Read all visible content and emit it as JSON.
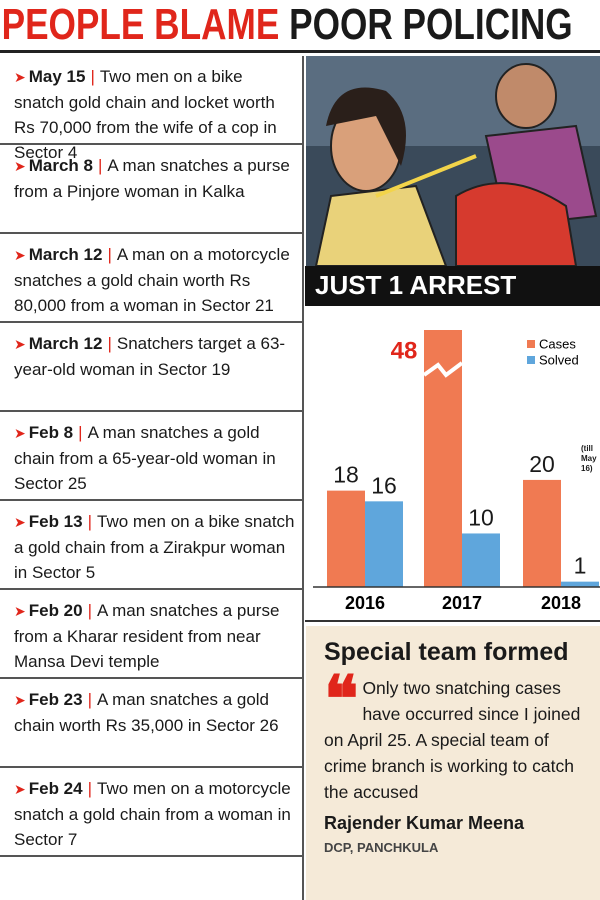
{
  "header": {
    "title_red": "PEOPLE BLAME",
    "title_black": "POOR POLICING"
  },
  "incidents": [
    {
      "date": "May 15",
      "text": "Two men on a bike snatch gold chain and locket worth Rs 70,000 from the wife of a cop in Sector 4"
    },
    {
      "date": "March 8",
      "text": "A man snatches a purse from a Pinjore woman in Kalka"
    },
    {
      "date": "March 12",
      "text": "A man on a motorcycle snatches a gold chain worth Rs 80,000 from a woman in Sector 21"
    },
    {
      "date": "March 12",
      "text": "Snatchers target a 63-year-old woman in Sector 19"
    },
    {
      "date": "Feb 8",
      "text": "A man snatches a gold chain from a 65-year-old woman in Sector 25"
    },
    {
      "date": "Feb 13",
      "text": "Two men on a bike snatch a gold chain from a Zirakpur woman in Sector 5"
    },
    {
      "date": "Feb 20",
      "text": "A man snatches a purse from a Kharar resident from near Mansa Devi temple"
    },
    {
      "date": "Feb 23",
      "text": "A man snatches a gold chain worth Rs 35,000 in Sector 26"
    },
    {
      "date": "Feb 24",
      "text": "Two men on a motorcycle snatch a gold chain from a woman in Sector 7"
    }
  ],
  "chart_data": {
    "type": "bar",
    "title": "JUST 1 ARREST",
    "categories": [
      "2016",
      "2017",
      "2018"
    ],
    "series": [
      {
        "name": "Cases",
        "color": "#f07a52",
        "values": [
          18,
          48,
          20
        ]
      },
      {
        "name": "Solved",
        "color": "#5fa6dc",
        "values": [
          16,
          10,
          1
        ]
      }
    ],
    "ylim": [
      0,
      48
    ],
    "legend": "upper right",
    "annotation": "(till May 16)"
  },
  "quote": {
    "title": "Special team formed",
    "text": "Only two snatching cases have occurred since I joined on April 25. A special team of crime branch is working to catch the accused",
    "author": "Rajender Kumar Meena",
    "role": "DCP, PANCHKULA"
  }
}
